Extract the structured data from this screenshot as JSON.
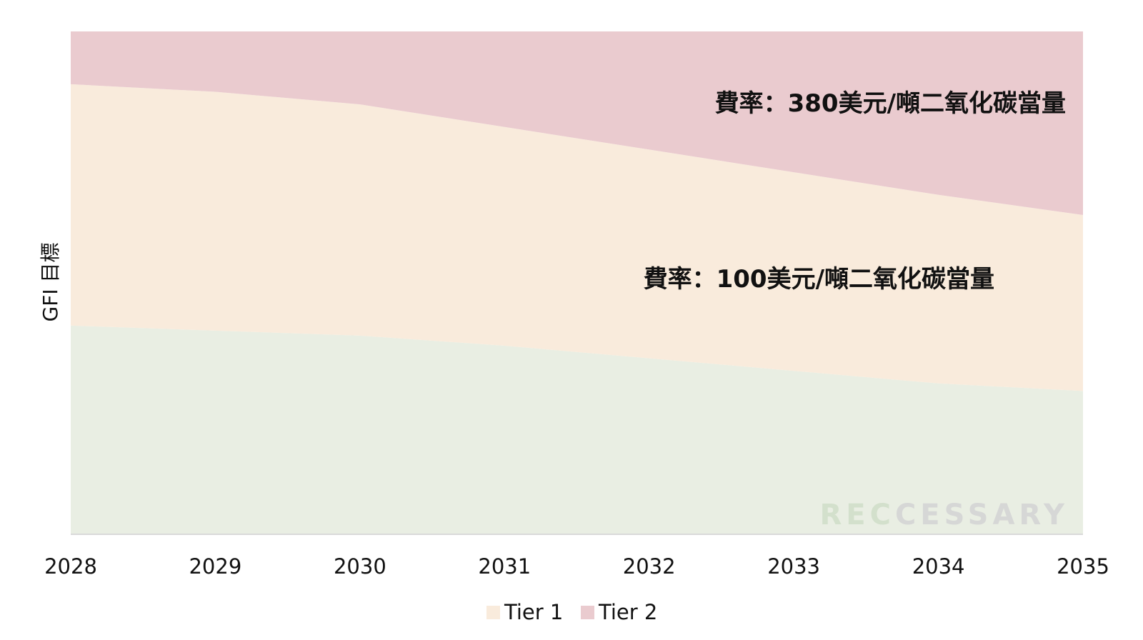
{
  "chart_data": {
    "type": "area",
    "x": [
      "2028",
      "2029",
      "2030",
      "2031",
      "2032",
      "2033",
      "2034",
      "2035"
    ],
    "ylabel": "GFI 目標",
    "xlabel": "",
    "title": "",
    "series": [
      {
        "name": "",
        "role": "compliant",
        "values": [
          0.415,
          0.405,
          0.395,
          0.375,
          0.35,
          0.325,
          0.3,
          0.285
        ],
        "color": "#e9eee3"
      },
      {
        "name": "Tier 1",
        "role": "tier1",
        "values": [
          0.895,
          0.88,
          0.855,
          0.81,
          0.765,
          0.72,
          0.675,
          0.635
        ],
        "color": "#f9ebdc"
      },
      {
        "name": "Tier 2",
        "role": "tier2",
        "values": [
          1.0,
          1.0,
          1.0,
          1.0,
          1.0,
          1.0,
          1.0,
          1.0
        ],
        "color": "#eacbcf"
      }
    ],
    "ylim": [
      0,
      1
    ],
    "grid": false,
    "legend_position": "bottom-center",
    "annotations": [
      {
        "text": "費率：380美元/噸二氧化碳當量",
        "area": "tier2"
      },
      {
        "text": "費率：100美元/噸二氧化碳當量",
        "area": "tier1"
      }
    ]
  },
  "watermark": {
    "text_light": "REC",
    "text_dark": "CESSARY",
    "light_color": "#d3e0cc",
    "dark_color": "#d6d7d6"
  }
}
